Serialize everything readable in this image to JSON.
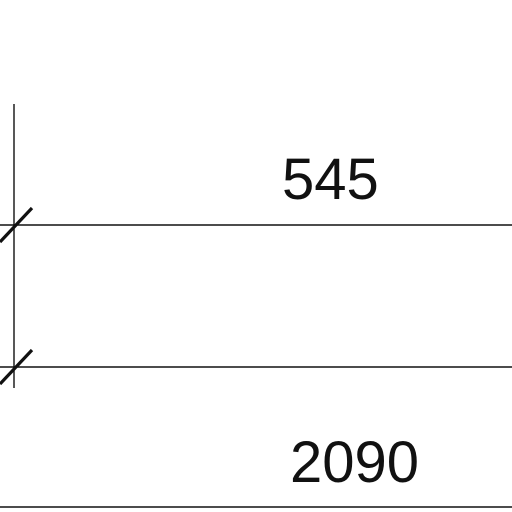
{
  "drawing": {
    "line_color": "#111111",
    "background": "#ffffff",
    "dimensions": {
      "upper": "545",
      "lower": "2090",
      "partial_left": ")"
    }
  }
}
